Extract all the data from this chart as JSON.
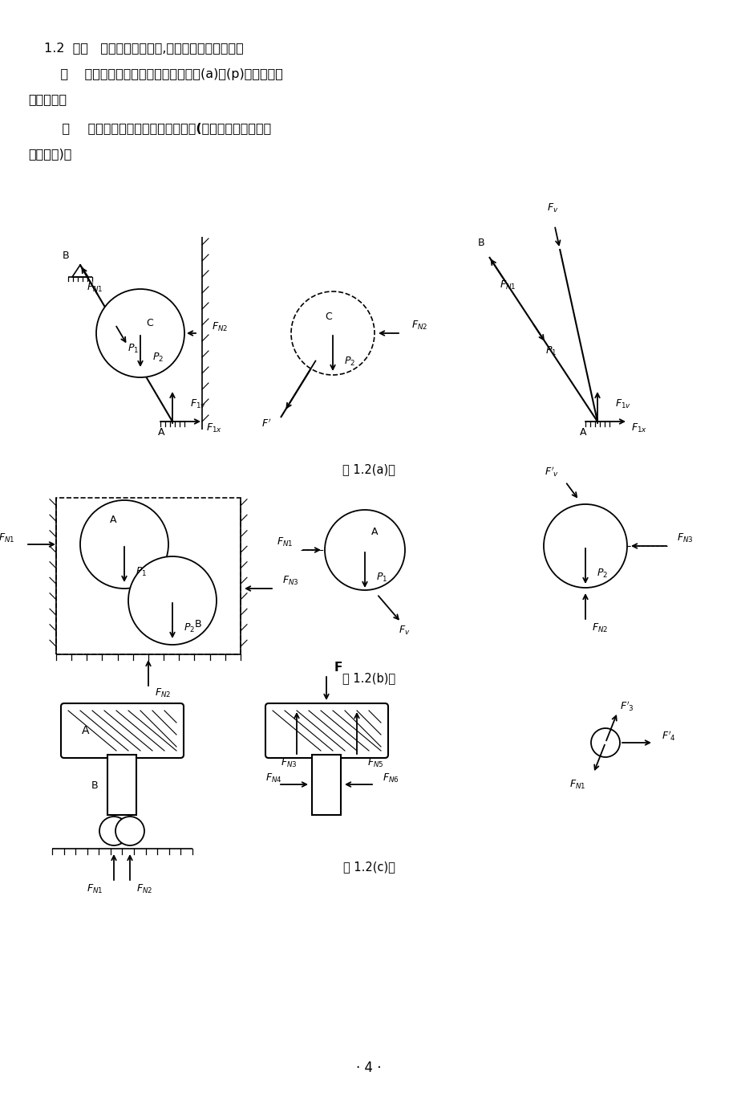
{
  "bg_color": "#ffffff",
  "line1": "1.2  已知   各结构、机构如图,其它条件与上题相同；",
  "line2": "    求    画出各标注字符的物体的受力图及(a)～(p)各小题的整",
  "line3": "体受力图。",
  "line4": "    解    上述指定物体的受力图分别如下(图中虚轮廓线表示拆",
  "line5": "除的物体)。",
  "caption_a": "题 1.2(a)图",
  "caption_b": "题 1.2(b)图",
  "caption_c": "题 1.2(c)图",
  "page_num": "· 4 ·"
}
